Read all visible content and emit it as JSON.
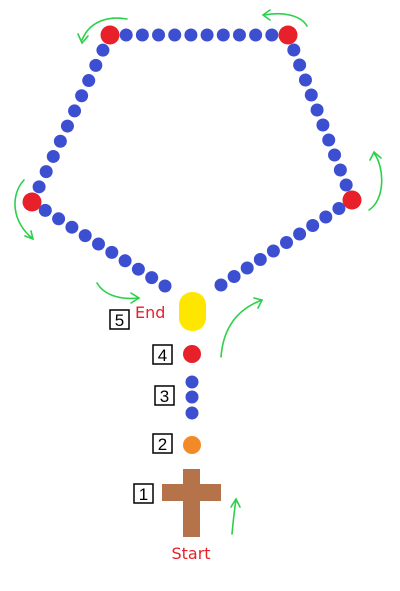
{
  "diagram": {
    "start_label": "Start",
    "end_label": "End",
    "step_labels": [
      "1",
      "2",
      "3",
      "4",
      "5"
    ]
  },
  "colors": {
    "small_bead": "#3d4fd1",
    "large_bead": "#e8202a",
    "orange_bead": "#f28a27",
    "centerpiece": "#ffe600",
    "cross": "#b5734a",
    "arrow": "#2bd14a",
    "text_red": "#e8202a",
    "box_stroke": "#000000"
  },
  "beads": {
    "loop_large_count": 5,
    "beads_between_large": 10,
    "stem_small_count": 3
  }
}
